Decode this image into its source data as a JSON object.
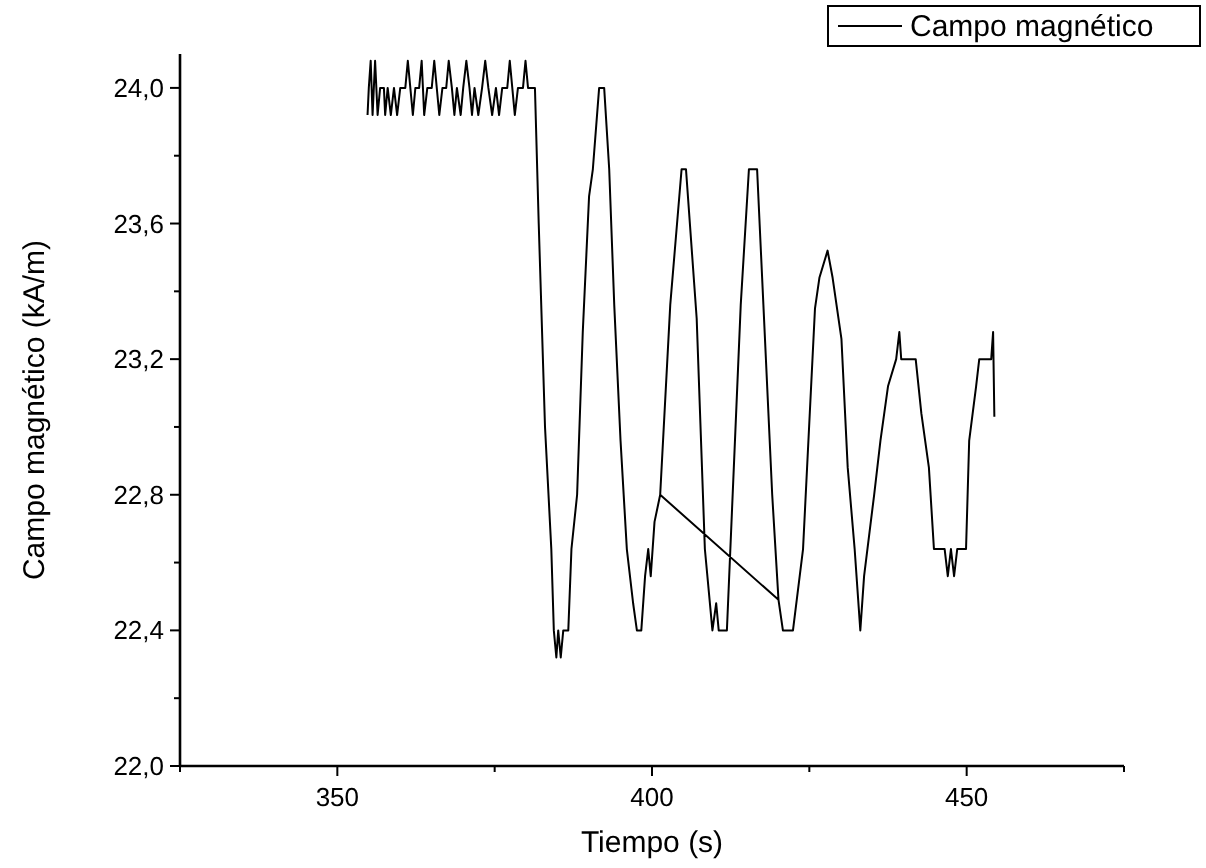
{
  "chart_data": {
    "type": "line",
    "xlabel": "Tiempo (s)",
    "ylabel": "Campo magnético (kA/m)",
    "xlim": [
      325,
      475
    ],
    "ylim": [
      22,
      24.1
    ],
    "xticks": [
      {
        "value": 325,
        "label": null
      },
      350,
      {
        "value": 375,
        "label": null
      },
      400,
      {
        "value": 425,
        "label": null
      },
      450,
      {
        "value": 475,
        "label": null
      }
    ],
    "yticks": [
      {
        "value": 22,
        "label": "22,0"
      },
      {
        "value": 22.2,
        "label": null
      },
      {
        "value": 22.4,
        "label": "22,4"
      },
      {
        "value": 22.6,
        "label": null
      },
      {
        "value": 22.8,
        "label": "22,8"
      },
      {
        "value": 23,
        "label": null
      },
      {
        "value": 23.2,
        "label": "23,2"
      },
      {
        "value": 23.4,
        "label": null
      },
      {
        "value": 23.6,
        "label": "23,6"
      },
      {
        "value": 23.8,
        "label": null
      },
      {
        "value": 24,
        "label": "24,0"
      }
    ],
    "grid": false,
    "legend": "top right",
    "marker": "none",
    "line_style": "solid",
    "series": [
      {
        "name": "Campo magnético",
        "color": "#000000",
        "x": [
          354.8,
          355,
          355.3,
          355.6,
          356,
          356.4,
          356.8,
          357.4,
          357.6,
          358,
          358.5,
          359,
          359.5,
          360,
          360.8,
          361.2,
          361.6,
          362,
          362.4,
          363,
          363.4,
          363.8,
          364.3,
          365,
          365.4,
          365.8,
          366.2,
          366.7,
          367.3,
          367.7,
          368.2,
          368.6,
          369,
          369.6,
          370,
          370.5,
          371,
          371.4,
          371.8,
          372.4,
          373,
          373.5,
          374,
          374.6,
          375.2,
          375.7,
          376.2,
          377,
          377.4,
          377.8,
          378.2,
          378.7,
          379.5,
          379.9,
          380.3,
          381.4,
          382,
          383,
          384,
          384.4,
          384.8,
          385.1,
          385.5,
          385.9,
          386.7,
          387.2,
          388.1,
          389,
          390,
          390.6,
          391.6,
          392.4,
          393.2,
          394,
          395,
          396,
          397,
          397.6,
          398.3,
          398.9,
          399.4,
          399.8,
          400.4,
          401.3,
          402.9,
          404.7,
          405.4,
          407.1,
          408.4,
          409.6,
          410.2,
          410.6,
          411.9,
          413,
          414.1,
          415.4,
          416.7,
          417.7,
          419.1,
          420.1,
          401.3,
          420.1,
          420.8,
          422.4,
          424,
          425.9,
          426.6,
          427.9,
          428.7,
          430.1,
          431.1,
          432.2,
          433.1,
          433.7,
          435.3,
          436.3,
          437.5,
          438.8,
          439.3,
          439.6,
          441.9,
          442.8,
          444,
          444.8,
          446.5,
          447,
          447.5,
          448,
          448.5,
          449.9,
          450.4,
          451.5,
          452,
          453.9,
          454.2,
          454.4
        ],
        "values": [
          23.92,
          24,
          24.08,
          23.92,
          24.08,
          23.92,
          24,
          24,
          23.92,
          24,
          23.92,
          24,
          23.92,
          24,
          24,
          24.08,
          24,
          23.92,
          24,
          24,
          24.08,
          23.92,
          24,
          24,
          24.08,
          24,
          23.92,
          24,
          24,
          24.08,
          24,
          23.92,
          24,
          23.92,
          24,
          24.08,
          24,
          23.92,
          24,
          23.92,
          24,
          24.08,
          24,
          23.92,
          24,
          23.92,
          24,
          24,
          24.08,
          24,
          23.92,
          24,
          24,
          24.08,
          24,
          24,
          23.6,
          23,
          22.64,
          22.4,
          22.32,
          22.4,
          22.32,
          22.4,
          22.4,
          22.64,
          22.8,
          23.28,
          23.68,
          23.76,
          24,
          24,
          23.76,
          23.36,
          22.96,
          22.64,
          22.48,
          22.4,
          22.4,
          22.56,
          22.64,
          22.56,
          22.72,
          22.8,
          23.36,
          23.76,
          23.76,
          23.32,
          22.64,
          22.4,
          22.48,
          22.4,
          22.4,
          22.88,
          23.36,
          23.76,
          23.76,
          23.36,
          22.8,
          22.49,
          22.8,
          22.49,
          22.4,
          22.4,
          22.64,
          23.35,
          23.44,
          23.52,
          23.44,
          23.26,
          22.88,
          22.64,
          22.4,
          22.56,
          22.8,
          22.96,
          23.12,
          23.2,
          23.28,
          23.2,
          23.2,
          23.04,
          22.88,
          22.64,
          22.64,
          22.56,
          22.64,
          22.56,
          22.64,
          22.64,
          22.96,
          23.12,
          23.2,
          23.2,
          23.28,
          23.03
        ]
      }
    ]
  }
}
